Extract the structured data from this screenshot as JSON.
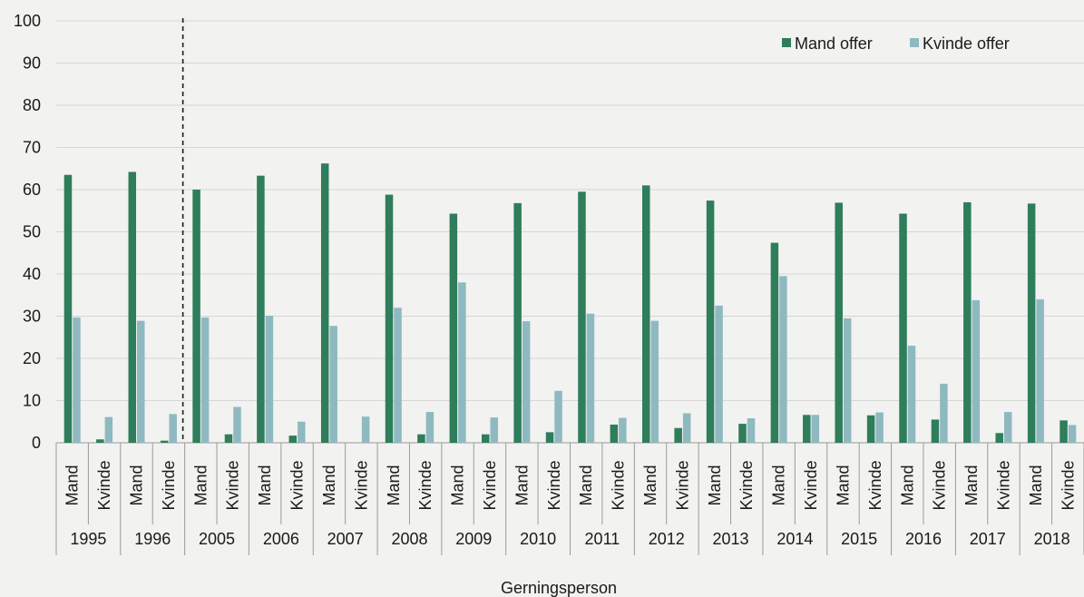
{
  "chart_data": {
    "type": "bar",
    "title": "",
    "xlabel": "Gerningsperson",
    "ylabel": "",
    "ylim": [
      0,
      100
    ],
    "yticks": [
      0,
      10,
      20,
      30,
      40,
      50,
      60,
      70,
      80,
      90,
      100
    ],
    "grid": true,
    "legend_position": "top-right",
    "years": [
      "1995",
      "1996",
      "2005",
      "2006",
      "2007",
      "2008",
      "2009",
      "2010",
      "2011",
      "2012",
      "2013",
      "2014",
      "2015",
      "2016",
      "2017",
      "2018"
    ],
    "subcategories": [
      "Mand",
      "Kvinde"
    ],
    "divider_after_year": "1996",
    "series": [
      {
        "name": "Mand offer",
        "color": "#2e7d5b",
        "values": [
          [
            63.5,
            0.8
          ],
          [
            64.2,
            0.5
          ],
          [
            60.0,
            2.0
          ],
          [
            63.3,
            1.7
          ],
          [
            66.2,
            0.0
          ],
          [
            58.8,
            2.0
          ],
          [
            54.3,
            2.0
          ],
          [
            56.8,
            2.5
          ],
          [
            59.5,
            4.3
          ],
          [
            61.0,
            3.5
          ],
          [
            57.4,
            4.5
          ],
          [
            47.4,
            6.6
          ],
          [
            56.9,
            6.5
          ],
          [
            54.3,
            5.5
          ],
          [
            57.0,
            2.3
          ],
          [
            56.7,
            5.3
          ]
        ]
      },
      {
        "name": "Kvinde offer",
        "color": "#8fb9c0",
        "values": [
          [
            29.7,
            6.1
          ],
          [
            28.9,
            6.8
          ],
          [
            29.7,
            8.5
          ],
          [
            30.1,
            5.0
          ],
          [
            27.7,
            6.2
          ],
          [
            32.0,
            7.3
          ],
          [
            38.0,
            6.0
          ],
          [
            28.8,
            12.3
          ],
          [
            30.6,
            5.9
          ],
          [
            28.9,
            7.0
          ],
          [
            32.5,
            5.8
          ],
          [
            39.5,
            6.6
          ],
          [
            29.5,
            7.2
          ],
          [
            23.0,
            14.0
          ],
          [
            33.8,
            7.3
          ],
          [
            34.0,
            4.2
          ]
        ]
      }
    ]
  }
}
